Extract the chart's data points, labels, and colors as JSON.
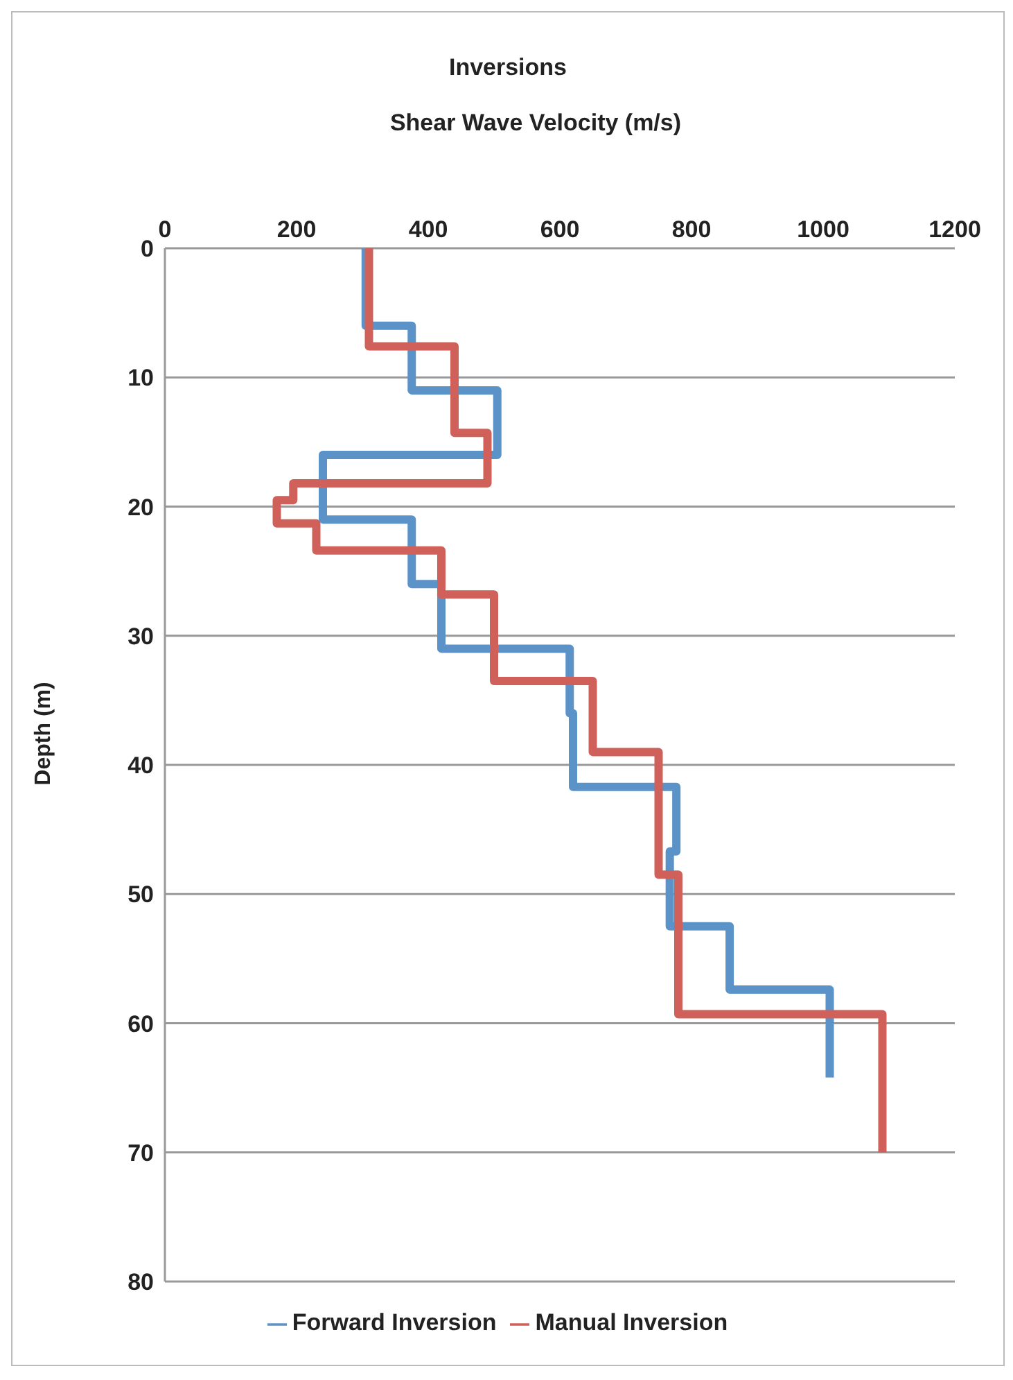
{
  "chart_data": {
    "type": "line",
    "title": "Inversions",
    "xlabel": "Shear Wave Velocity  (m/s)",
    "ylabel": "Depth (m)",
    "xlim": [
      0,
      1200
    ],
    "xticks": [
      0,
      200,
      400,
      600,
      800,
      1000,
      1200
    ],
    "ylim": [
      80,
      0
    ],
    "yticks": [
      0,
      10,
      20,
      30,
      40,
      50,
      60,
      70,
      80
    ],
    "grid": "y",
    "legend": "bottom",
    "marker": "none",
    "line_style": "solid",
    "series": [
      {
        "name": "Forward Inversion",
        "color": "#5b93c9",
        "x": [
          305,
          305,
          375,
          375,
          505,
          505,
          240,
          240,
          375,
          375,
          420,
          420,
          615,
          615,
          620,
          620,
          777,
          777,
          767,
          767,
          858,
          858,
          1010,
          1010
        ],
        "values": [
          0,
          6,
          6,
          11,
          11,
          16,
          16,
          21,
          21,
          26,
          26,
          31,
          31,
          36,
          36,
          41.7,
          41.7,
          46.7,
          46.7,
          52.5,
          52.5,
          57.4,
          57.4,
          64.2
        ]
      },
      {
        "name": "Manual Inversion",
        "color": "#d0605a",
        "x": [
          310,
          310,
          440,
          440,
          490,
          490,
          195,
          195,
          170,
          170,
          230,
          230,
          420,
          420,
          500,
          500,
          650,
          650,
          750,
          750,
          780,
          780,
          1090,
          1090
        ],
        "values": [
          0,
          7.6,
          7.6,
          14.3,
          14.3,
          18.2,
          18.2,
          19.5,
          19.5,
          21.3,
          21.3,
          23.4,
          23.4,
          26.8,
          26.8,
          33.5,
          33.5,
          39,
          39,
          48.5,
          48.5,
          59.3,
          59.3,
          70
        ]
      }
    ]
  }
}
